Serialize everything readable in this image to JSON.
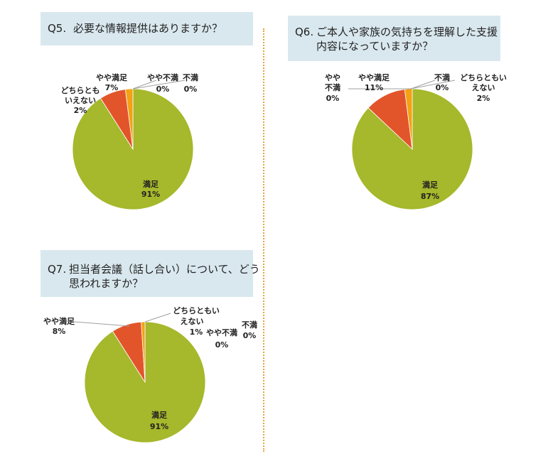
{
  "colors": {
    "satisfied": "#a6b82b",
    "somewhat_satisfied": "#e2552b",
    "neither": "#f4a115",
    "somewhat_dissatisfied": "#4a7ebb",
    "dissatisfied": "#7f7f7f"
  },
  "q5": {
    "num": "Q5.",
    "text": "必要な情報提供はありますか？",
    "labels": {
      "satisfied": [
        "満足",
        "91%"
      ],
      "somewhat_satisfied": [
        "やや満足",
        "7%"
      ],
      "neither": [
        "どちらとも",
        "いえない",
        "2%"
      ],
      "somewhat_dissatisfied": [
        "やや不満",
        "0%"
      ],
      "dissatisfied": [
        "不満",
        "0%"
      ]
    }
  },
  "q6": {
    "num": "Q6.",
    "text1": "ご本人や家族の気持ちを理解した支援",
    "text2": "内容になっていますか？",
    "labels": {
      "satisfied": [
        "満足",
        "87%"
      ],
      "somewhat_satisfied": [
        "やや満足",
        "11%"
      ],
      "neither": [
        "どちらともい",
        "えない",
        "2%"
      ],
      "somewhat_dissatisfied": [
        "やや",
        "不満",
        "0%"
      ],
      "dissatisfied": [
        "不満",
        "0%"
      ]
    }
  },
  "q7": {
    "num": "Q7.",
    "text1": "担当者会議（話し合い）について、どう",
    "text2": "思われますか？",
    "labels": {
      "satisfied": [
        "満足",
        "91%"
      ],
      "somewhat_satisfied": [
        "やや満足",
        "8%"
      ],
      "neither": [
        "どちらともい",
        "えない",
        "1%"
      ],
      "somewhat_dissatisfied": [
        "やや不満",
        "0%"
      ],
      "dissatisfied": [
        "不満",
        "0%"
      ]
    }
  },
  "chart_data": [
    {
      "type": "pie",
      "categories": [
        "満足",
        "やや満足",
        "どちらともいえない",
        "やや不満",
        "不満"
      ],
      "values": [
        91,
        7,
        2,
        0,
        0
      ]
    },
    {
      "type": "pie",
      "categories": [
        "満足",
        "やや満足",
        "どちらともいえない",
        "やや不満",
        "不満"
      ],
      "values": [
        87,
        11,
        2,
        0,
        0
      ]
    },
    {
      "type": "pie",
      "categories": [
        "満足",
        "やや満足",
        "どちらともいえない",
        "やや不満",
        "不満"
      ],
      "values": [
        91,
        8,
        1,
        0,
        0
      ]
    }
  ]
}
